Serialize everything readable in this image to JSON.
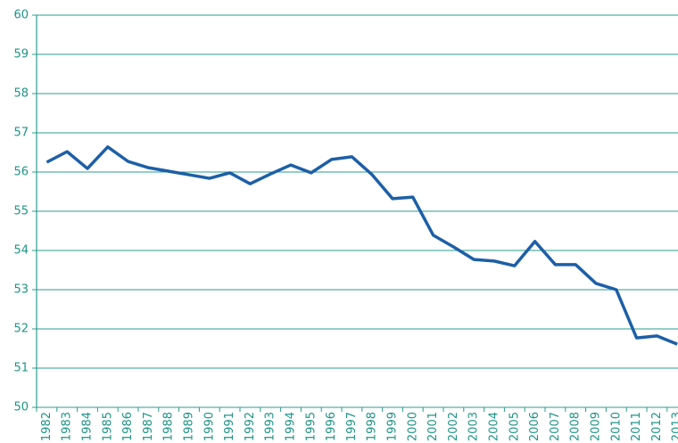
{
  "chart_data": {
    "type": "line",
    "categories": [
      "1982",
      "1983",
      "1984",
      "1985",
      "1986",
      "1987",
      "1988",
      "1989",
      "1990",
      "1991",
      "1992",
      "1993",
      "1994",
      "1995",
      "1996",
      "1997",
      "1998",
      "1999",
      "2000",
      "2001",
      "2002",
      "2003",
      "2004",
      "2005",
      "2006",
      "2007",
      "2008",
      "2009",
      "2010",
      "2011",
      "2012",
      "2013"
    ],
    "series": [
      {
        "color": "#1d5fa7",
        "values": [
          56.25,
          56.52,
          56.09,
          56.64,
          56.27,
          56.11,
          56.02,
          55.93,
          55.84,
          55.98,
          55.7,
          55.95,
          56.18,
          55.98,
          56.32,
          56.39,
          55.93,
          55.32,
          55.36,
          54.39,
          54.09,
          53.77,
          53.73,
          53.61,
          54.23,
          53.64,
          53.64,
          53.16,
          53.0,
          51.77,
          51.82,
          51.61
        ]
      }
    ],
    "ylim": [
      50,
      60
    ],
    "yticks": [
      50,
      51,
      52,
      53,
      54,
      55,
      56,
      57,
      58,
      59,
      60
    ],
    "grid": true
  }
}
